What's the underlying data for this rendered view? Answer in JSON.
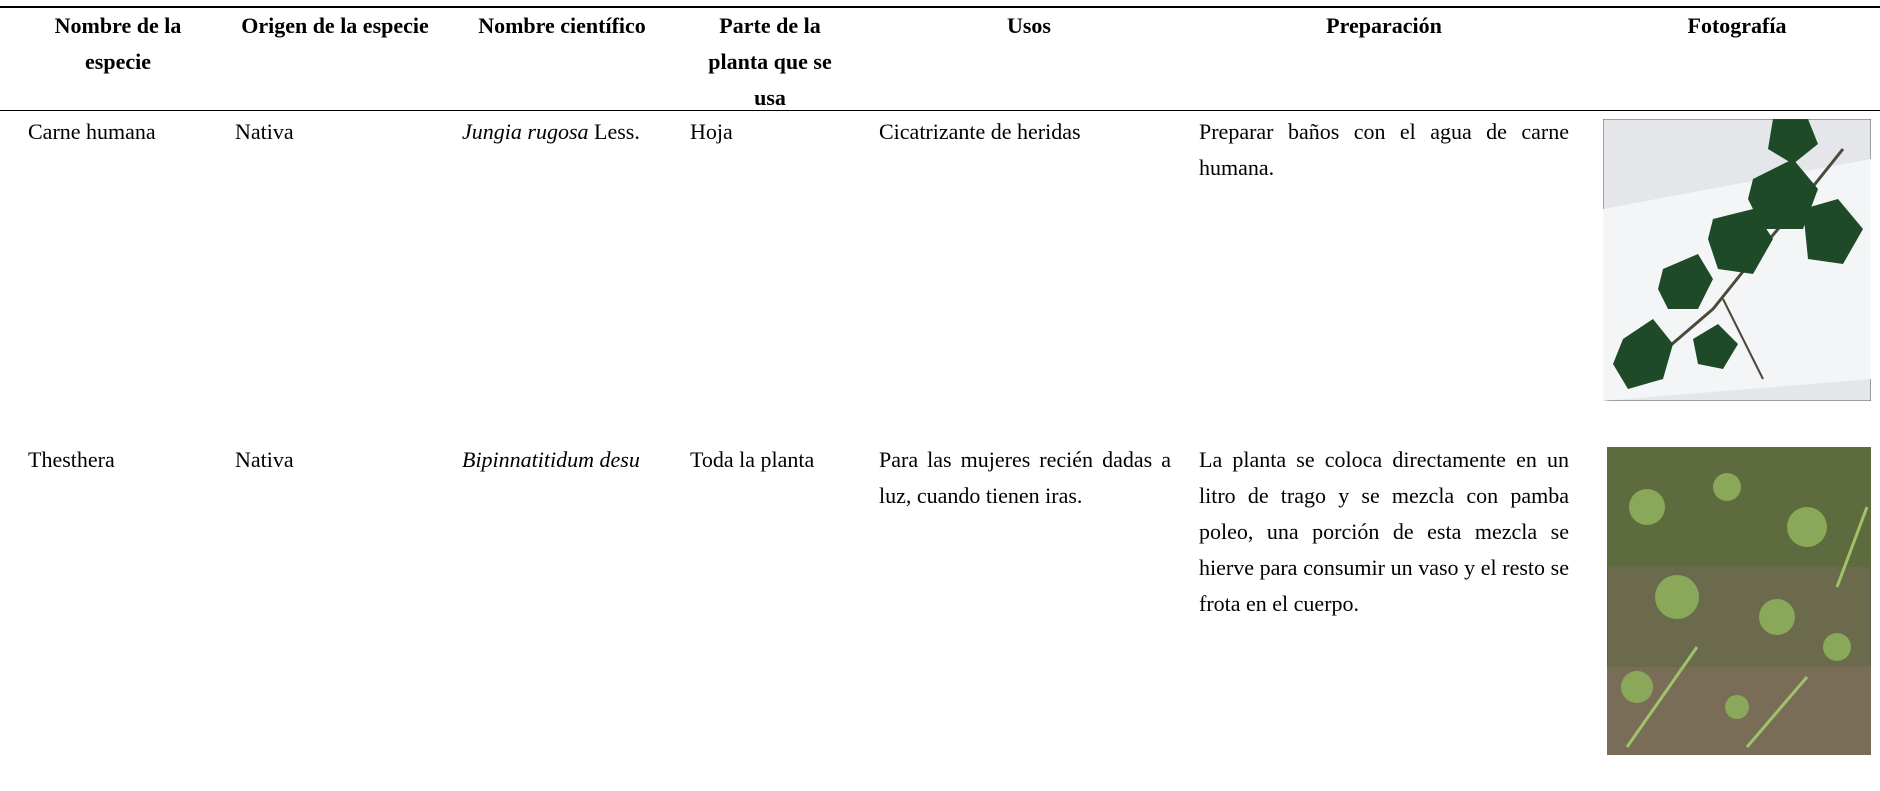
{
  "header": {
    "columns": [
      "Nombre de la especie",
      "Origen de la especie",
      "Nombre científico",
      "Parte de la planta que se usa",
      "Usos",
      "Preparación",
      "Fotografía"
    ]
  },
  "rows": [
    {
      "name": "Carne humana",
      "origin": "Nativa",
      "scientific_name": "Jungia rugosa",
      "author": "Less.",
      "part": "Hoja",
      "uses": "Cicatrizante de heridas",
      "preparation": "Preparar baños con el agua de carne humana."
    },
    {
      "name": "Thesthera",
      "origin": "Nativa",
      "scientific_name": "Bipinnatitidum desu",
      "part": "Toda la planta",
      "uses": "Para las mujeres recién dadas a luz, cuando tienen iras.",
      "preparation": "La planta se coloca directamente en un litro de trago y se mezcla con pamba poleo, una porción de esta mezcla se hierve para consumir un vaso y el resto se frota en el cuerpo."
    }
  ]
}
